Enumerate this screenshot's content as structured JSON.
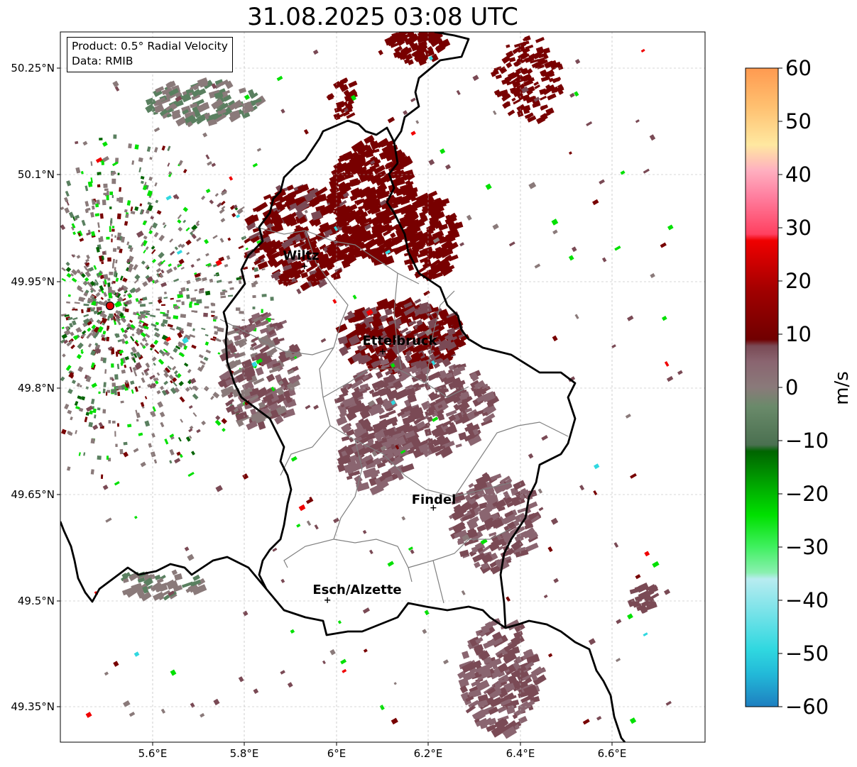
{
  "title": "31.08.2025 03:08 UTC",
  "info": {
    "product": "Product: 0.5° Radial Velocity",
    "data": "Data: RMIB"
  },
  "axes": {
    "lat_ticks": [
      "50.25°N",
      "50.1°N",
      "49.95°N",
      "49.8°N",
      "49.65°N",
      "49.5°N",
      "49.35°N"
    ],
    "lon_ticks": [
      "5.6°E",
      "5.8°E",
      "6°E",
      "6.2°E",
      "6.4°E",
      "6.6°E"
    ],
    "lon_range": [
      5.4,
      6.8
    ],
    "lat_range": [
      49.3,
      50.3
    ],
    "gridlines": true
  },
  "cities": [
    {
      "name": "Wiltz",
      "lon": 5.93,
      "lat": 49.97
    },
    {
      "name": "Ettelbruck",
      "lon": 6.1,
      "lat": 49.85
    },
    {
      "name": "Findel",
      "lon": 6.21,
      "lat": 49.63
    },
    {
      "name": "Esch/Alzette",
      "lon": 5.98,
      "lat": 49.5
    }
  ],
  "radar_site": {
    "lon": 5.505,
    "lat": 49.914,
    "color": "#e00000"
  },
  "colorbar": {
    "label": "m/s",
    "ticks": [
      "60",
      "50",
      "40",
      "30",
      "20",
      "10",
      "0",
      "−10",
      "−20",
      "−30",
      "−40",
      "−50",
      "−60"
    ],
    "range": [
      -60,
      60
    ],
    "colors": {
      "approaching_far": "#1e7fc0",
      "cyan": "#30d8e0",
      "light_cyan": "#b8ecf0",
      "light_green": "#7df0a0",
      "green": "#00e000",
      "dark_green": "#006400",
      "gray_green": "#5a8060",
      "gray": "#8a7a7a",
      "mauve": "#7a4a55",
      "dark_red": "#780000",
      "red": "#f00000",
      "pink": "#ff6080",
      "light_pink": "#ff99cc",
      "peach": "#ffe0a0",
      "orange": "#ff9a50"
    }
  }
}
